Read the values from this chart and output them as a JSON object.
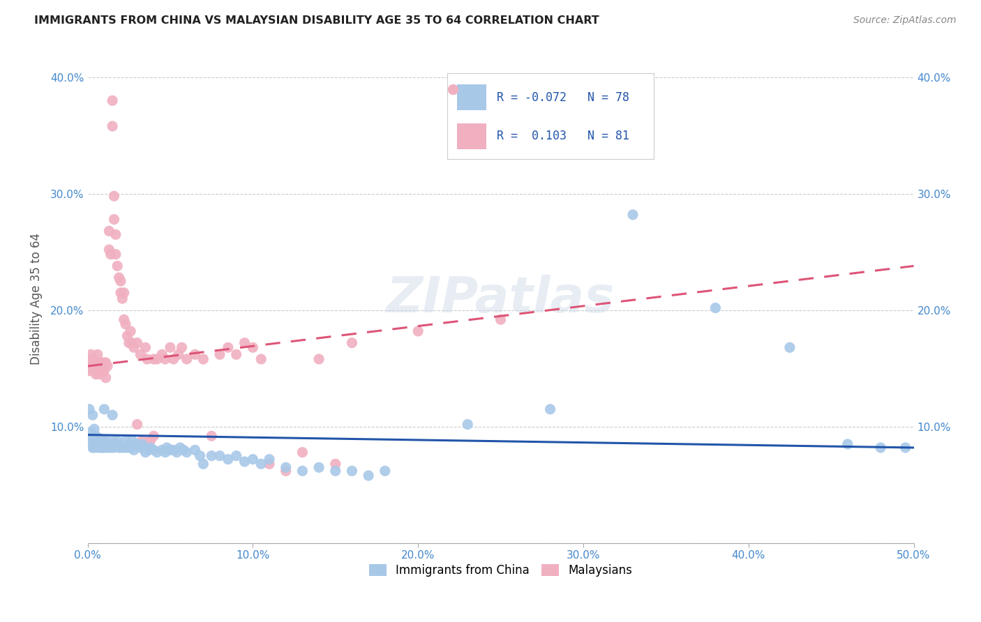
{
  "title": "IMMIGRANTS FROM CHINA VS MALAYSIAN DISABILITY AGE 35 TO 64 CORRELATION CHART",
  "source": "Source: ZipAtlas.com",
  "ylabel": "Disability Age 35 to 64",
  "xlim": [
    0.0,
    0.5
  ],
  "ylim": [
    0.0,
    0.42
  ],
  "xtick_vals": [
    0.0,
    0.1,
    0.2,
    0.3,
    0.4,
    0.5
  ],
  "xticklabels": [
    "0.0%",
    "10.0%",
    "20.0%",
    "30.0%",
    "40.0%",
    "50.0%"
  ],
  "ytick_vals": [
    0.0,
    0.1,
    0.2,
    0.3,
    0.4
  ],
  "yticklabels": [
    "",
    "10.0%",
    "20.0%",
    "30.0%",
    "40.0%"
  ],
  "blue_color": "#a8c8e8",
  "pink_color": "#f0b0c0",
  "blue_line_color": "#2255aa",
  "pink_line_color": "#dd5577",
  "blue_dots": [
    [
      0.001,
      0.115
    ],
    [
      0.001,
      0.09
    ],
    [
      0.002,
      0.095
    ],
    [
      0.002,
      0.088
    ],
    [
      0.003,
      0.11
    ],
    [
      0.003,
      0.082
    ],
    [
      0.004,
      0.098
    ],
    [
      0.004,
      0.082
    ],
    [
      0.005,
      0.092
    ],
    [
      0.005,
      0.085
    ],
    [
      0.006,
      0.088
    ],
    [
      0.006,
      0.082
    ],
    [
      0.007,
      0.09
    ],
    [
      0.007,
      0.085
    ],
    [
      0.008,
      0.082
    ],
    [
      0.009,
      0.082
    ],
    [
      0.01,
      0.088
    ],
    [
      0.01,
      0.082
    ],
    [
      0.011,
      0.088
    ],
    [
      0.012,
      0.082
    ],
    [
      0.013,
      0.085
    ],
    [
      0.014,
      0.082
    ],
    [
      0.015,
      0.088
    ],
    [
      0.016,
      0.082
    ],
    [
      0.017,
      0.085
    ],
    [
      0.018,
      0.088
    ],
    [
      0.019,
      0.082
    ],
    [
      0.02,
      0.082
    ],
    [
      0.022,
      0.082
    ],
    [
      0.023,
      0.088
    ],
    [
      0.024,
      0.082
    ],
    [
      0.025,
      0.085
    ],
    [
      0.026,
      0.082
    ],
    [
      0.027,
      0.088
    ],
    [
      0.028,
      0.08
    ],
    [
      0.03,
      0.085
    ],
    [
      0.032,
      0.082
    ],
    [
      0.033,
      0.085
    ],
    [
      0.034,
      0.082
    ],
    [
      0.035,
      0.078
    ],
    [
      0.037,
      0.08
    ],
    [
      0.038,
      0.082
    ],
    [
      0.04,
      0.08
    ],
    [
      0.042,
      0.078
    ],
    [
      0.045,
      0.08
    ],
    [
      0.047,
      0.078
    ],
    [
      0.048,
      0.082
    ],
    [
      0.05,
      0.08
    ],
    [
      0.052,
      0.08
    ],
    [
      0.054,
      0.078
    ],
    [
      0.056,
      0.082
    ],
    [
      0.058,
      0.08
    ],
    [
      0.06,
      0.078
    ],
    [
      0.065,
      0.08
    ],
    [
      0.068,
      0.075
    ],
    [
      0.07,
      0.068
    ],
    [
      0.075,
      0.075
    ],
    [
      0.08,
      0.075
    ],
    [
      0.085,
      0.072
    ],
    [
      0.09,
      0.075
    ],
    [
      0.095,
      0.07
    ],
    [
      0.1,
      0.072
    ],
    [
      0.105,
      0.068
    ],
    [
      0.11,
      0.072
    ],
    [
      0.12,
      0.065
    ],
    [
      0.13,
      0.062
    ],
    [
      0.14,
      0.065
    ],
    [
      0.15,
      0.062
    ],
    [
      0.16,
      0.062
    ],
    [
      0.17,
      0.058
    ],
    [
      0.18,
      0.062
    ],
    [
      0.23,
      0.102
    ],
    [
      0.28,
      0.115
    ],
    [
      0.33,
      0.282
    ],
    [
      0.38,
      0.202
    ],
    [
      0.425,
      0.168
    ],
    [
      0.46,
      0.085
    ],
    [
      0.48,
      0.082
    ],
    [
      0.495,
      0.082
    ],
    [
      0.01,
      0.115
    ],
    [
      0.015,
      0.11
    ]
  ],
  "pink_dots": [
    [
      0.001,
      0.155
    ],
    [
      0.001,
      0.148
    ],
    [
      0.002,
      0.162
    ],
    [
      0.002,
      0.155
    ],
    [
      0.003,
      0.158
    ],
    [
      0.003,
      0.152
    ],
    [
      0.003,
      0.148
    ],
    [
      0.004,
      0.155
    ],
    [
      0.004,
      0.148
    ],
    [
      0.005,
      0.155
    ],
    [
      0.005,
      0.15
    ],
    [
      0.005,
      0.145
    ],
    [
      0.006,
      0.162
    ],
    [
      0.006,
      0.155
    ],
    [
      0.006,
      0.15
    ],
    [
      0.007,
      0.155
    ],
    [
      0.007,
      0.145
    ],
    [
      0.008,
      0.155
    ],
    [
      0.008,
      0.15
    ],
    [
      0.009,
      0.155
    ],
    [
      0.009,
      0.148
    ],
    [
      0.01,
      0.155
    ],
    [
      0.01,
      0.148
    ],
    [
      0.011,
      0.155
    ],
    [
      0.011,
      0.142
    ],
    [
      0.012,
      0.152
    ],
    [
      0.013,
      0.268
    ],
    [
      0.013,
      0.252
    ],
    [
      0.014,
      0.248
    ],
    [
      0.015,
      0.38
    ],
    [
      0.015,
      0.358
    ],
    [
      0.016,
      0.298
    ],
    [
      0.016,
      0.278
    ],
    [
      0.017,
      0.265
    ],
    [
      0.017,
      0.248
    ],
    [
      0.018,
      0.238
    ],
    [
      0.019,
      0.228
    ],
    [
      0.02,
      0.225
    ],
    [
      0.02,
      0.215
    ],
    [
      0.021,
      0.21
    ],
    [
      0.022,
      0.215
    ],
    [
      0.022,
      0.192
    ],
    [
      0.023,
      0.188
    ],
    [
      0.024,
      0.178
    ],
    [
      0.025,
      0.172
    ],
    [
      0.026,
      0.182
    ],
    [
      0.027,
      0.172
    ],
    [
      0.028,
      0.168
    ],
    [
      0.03,
      0.172
    ],
    [
      0.03,
      0.102
    ],
    [
      0.032,
      0.162
    ],
    [
      0.033,
      0.088
    ],
    [
      0.035,
      0.168
    ],
    [
      0.036,
      0.158
    ],
    [
      0.038,
      0.088
    ],
    [
      0.04,
      0.158
    ],
    [
      0.04,
      0.092
    ],
    [
      0.042,
      0.158
    ],
    [
      0.045,
      0.162
    ],
    [
      0.047,
      0.158
    ],
    [
      0.05,
      0.168
    ],
    [
      0.052,
      0.158
    ],
    [
      0.055,
      0.162
    ],
    [
      0.057,
      0.168
    ],
    [
      0.06,
      0.158
    ],
    [
      0.065,
      0.162
    ],
    [
      0.07,
      0.158
    ],
    [
      0.075,
      0.092
    ],
    [
      0.08,
      0.162
    ],
    [
      0.085,
      0.168
    ],
    [
      0.09,
      0.162
    ],
    [
      0.095,
      0.172
    ],
    [
      0.1,
      0.168
    ],
    [
      0.105,
      0.158
    ],
    [
      0.11,
      0.068
    ],
    [
      0.12,
      0.062
    ],
    [
      0.13,
      0.078
    ],
    [
      0.14,
      0.158
    ],
    [
      0.15,
      0.068
    ],
    [
      0.16,
      0.172
    ],
    [
      0.2,
      0.182
    ],
    [
      0.25,
      0.192
    ]
  ],
  "blue_line_y0": 0.093,
  "blue_line_y1": 0.082,
  "pink_line_y0": 0.152,
  "pink_line_y1": 0.238
}
